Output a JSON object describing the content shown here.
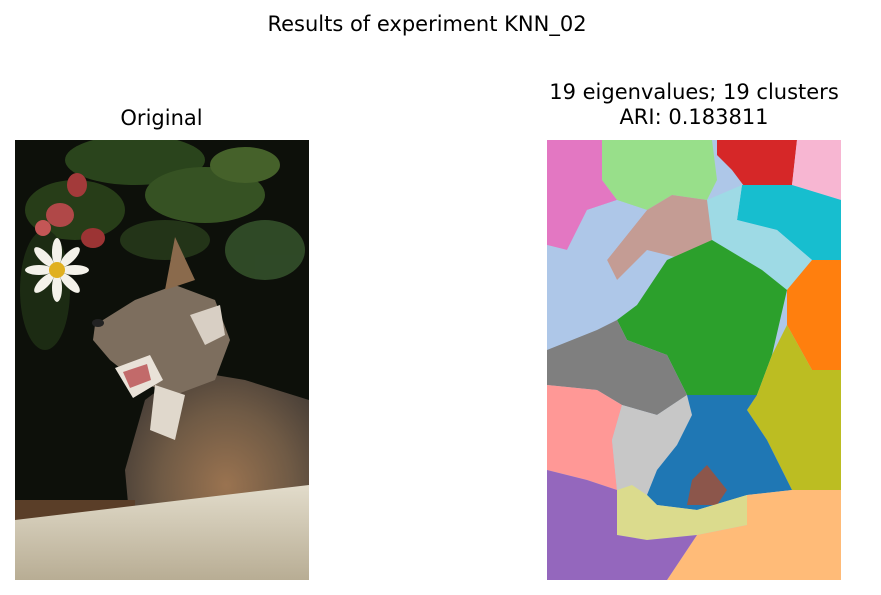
{
  "figure": {
    "suptitle": "Results of experiment KNN_02"
  },
  "chart_data": [
    {
      "type": "image",
      "title": "Original",
      "content": "photograph of a gray fox with open mouth on a log, pink and white daisy flowers upper-left, dark green foliage background"
    },
    {
      "type": "heatmap",
      "title_line1": "19 eigenvalues; 19 clusters",
      "title_line2": "ARI: 0.183811",
      "eigenvalues": 19,
      "clusters": 19,
      "ari": 0.183811,
      "grid": false,
      "colormap": "tab20",
      "cluster_colors": [
        "#1f77b4",
        "#aec7e8",
        "#ff7f0e",
        "#ffbb78",
        "#2ca02c",
        "#98df8a",
        "#d62728",
        "#ff9896",
        "#9467bd",
        "#8c564b",
        "#c49c94",
        "#e377c2",
        "#f7b6d2",
        "#7f7f7f",
        "#c7c7c7",
        "#bcbd22",
        "#dbdb8d",
        "#17becf",
        "#9edae5"
      ]
    }
  ]
}
